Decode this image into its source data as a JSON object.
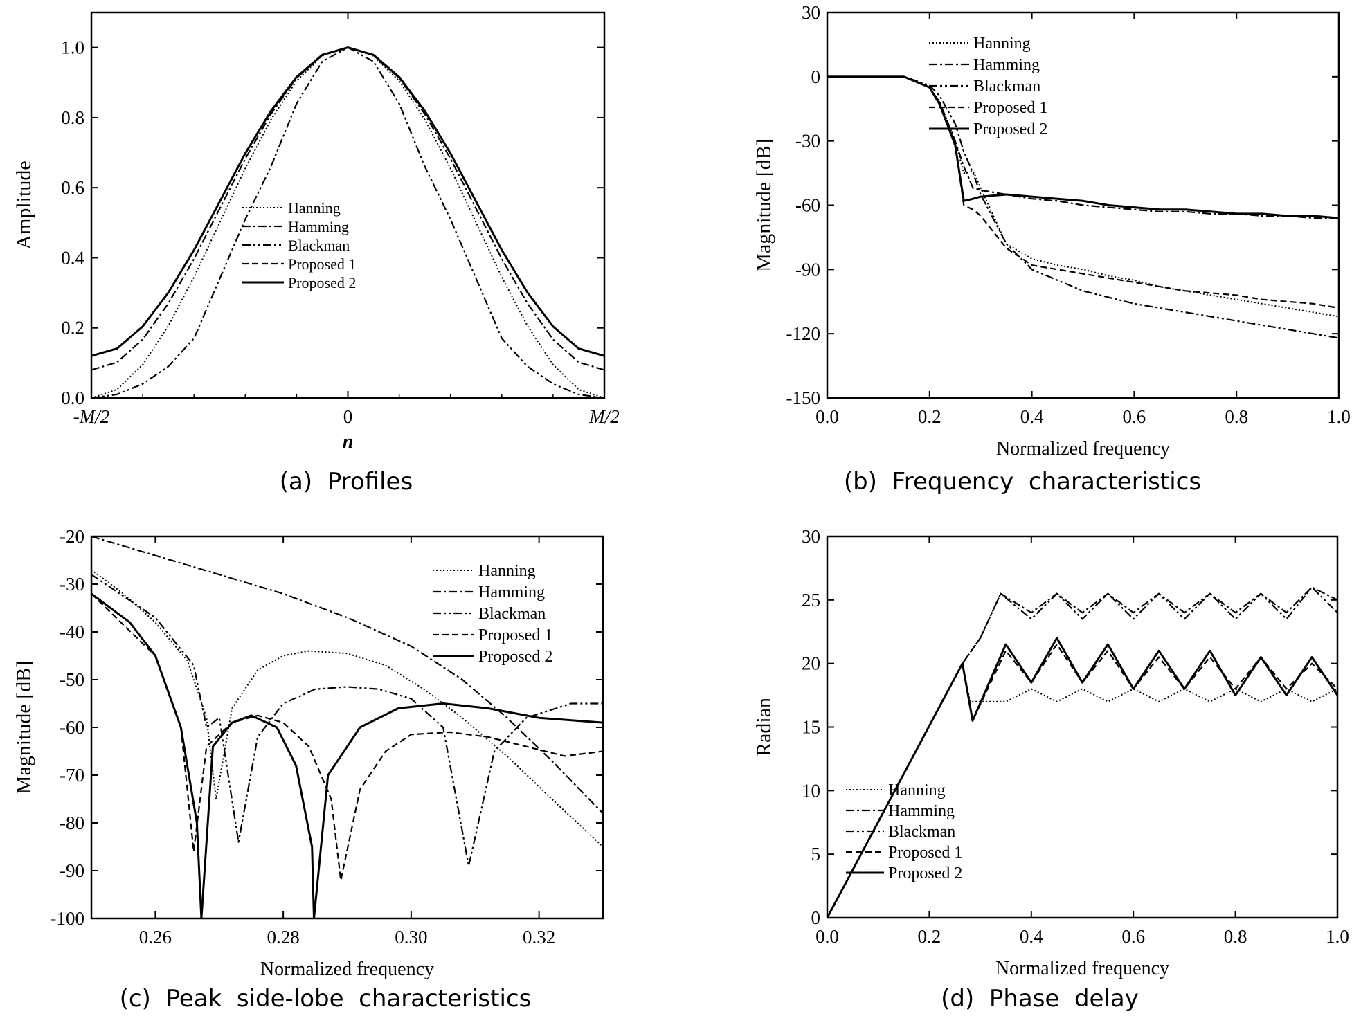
{
  "chart_data": [
    {
      "type": "line",
      "caption": "(a)  Profiles",
      "xlabel": "n",
      "ylabel": "Amplitude",
      "xlim": [
        -1,
        1
      ],
      "ylim": [
        0,
        1.1
      ],
      "yticks": [
        0.0,
        0.2,
        0.4,
        0.6,
        0.8,
        1.0
      ],
      "ytick_labels": [
        "0.0",
        "0.2",
        "0.4",
        "0.6",
        "0.8",
        "1.0"
      ],
      "xticks": [
        -1,
        0,
        1
      ],
      "xtick_labels": [
        "-M/2",
        "0",
        "M/2"
      ],
      "legend_position": "bottom-center",
      "x": [
        -1.0,
        -0.9,
        -0.8,
        -0.7,
        -0.6,
        -0.5,
        -0.4,
        -0.3,
        -0.2,
        -0.1,
        0.0,
        0.1,
        0.2,
        0.3,
        0.4,
        0.5,
        0.6,
        0.7,
        0.8,
        0.9,
        1.0
      ],
      "series": [
        {
          "name": "Hanning",
          "style": "dotted",
          "values": [
            0.0,
            0.024,
            0.095,
            0.206,
            0.345,
            0.5,
            0.655,
            0.794,
            0.905,
            0.976,
            1.0,
            0.976,
            0.905,
            0.794,
            0.655,
            0.5,
            0.345,
            0.206,
            0.095,
            0.024,
            0.0
          ]
        },
        {
          "name": "Hamming",
          "style": "dashdot",
          "values": [
            0.08,
            0.102,
            0.167,
            0.27,
            0.397,
            0.54,
            0.683,
            0.81,
            0.913,
            0.978,
            1.0,
            0.978,
            0.913,
            0.81,
            0.683,
            0.54,
            0.397,
            0.27,
            0.167,
            0.102,
            0.08
          ]
        },
        {
          "name": "Blackman",
          "style": "dashdotdot",
          "values": [
            0.0,
            0.01,
            0.04,
            0.09,
            0.17,
            0.34,
            0.51,
            0.66,
            0.84,
            0.96,
            1.0,
            0.96,
            0.84,
            0.66,
            0.51,
            0.34,
            0.17,
            0.09,
            0.04,
            0.01,
            0.0
          ]
        },
        {
          "name": "Proposed 1",
          "style": "dashed",
          "values": [
            0.12,
            0.141,
            0.204,
            0.301,
            0.422,
            0.56,
            0.698,
            0.819,
            0.916,
            0.979,
            1.0,
            0.979,
            0.916,
            0.819,
            0.698,
            0.56,
            0.422,
            0.301,
            0.204,
            0.141,
            0.12
          ]
        },
        {
          "name": "Proposed 2",
          "style": "solid",
          "values": [
            0.12,
            0.141,
            0.204,
            0.301,
            0.422,
            0.56,
            0.698,
            0.819,
            0.916,
            0.979,
            1.0,
            0.979,
            0.916,
            0.819,
            0.698,
            0.56,
            0.422,
            0.301,
            0.204,
            0.141,
            0.12
          ]
        }
      ]
    },
    {
      "type": "line",
      "caption": "(b)  Frequency  characteristics",
      "xlabel": "Normalized frequency",
      "ylabel": "Magnitude [dB]",
      "xlim": [
        0.0,
        1.0
      ],
      "ylim": [
        -150,
        30
      ],
      "xticks": [
        0.0,
        0.2,
        0.4,
        0.6,
        0.8,
        1.0
      ],
      "xtick_labels": [
        "0.0",
        "0.2",
        "0.4",
        "0.6",
        "0.8",
        "1.0"
      ],
      "yticks": [
        30,
        0,
        -30,
        -60,
        -90,
        -120,
        -150
      ],
      "ytick_labels": [
        "30",
        "0",
        "-30",
        "-60",
        "-90",
        "-120",
        "-150"
      ],
      "legend_position": "top-right",
      "x": [
        0.0,
        0.15,
        0.2,
        0.22,
        0.25,
        0.267,
        0.285,
        0.3,
        0.35,
        0.4,
        0.45,
        0.5,
        0.55,
        0.6,
        0.65,
        0.7,
        0.75,
        0.8,
        0.85,
        0.9,
        0.95,
        1.0
      ],
      "series": [
        {
          "name": "Hanning",
          "style": "dotted",
          "values": [
            0,
            0,
            -5,
            -12,
            -30,
            -45,
            -44,
            -52,
            -78,
            -85,
            -88,
            -90,
            -93,
            -95,
            -98,
            -100,
            -102,
            -104,
            -106,
            -108,
            -110,
            -112
          ]
        },
        {
          "name": "Hamming",
          "style": "dashdot",
          "values": [
            0,
            0,
            -5,
            -12,
            -30,
            -42,
            -52,
            -53,
            -55,
            -57,
            -58,
            -60,
            -61,
            -62,
            -63,
            -63,
            -64,
            -64,
            -65,
            -65,
            -66,
            -66
          ]
        },
        {
          "name": "Blackman",
          "style": "dashdotdot",
          "values": [
            0,
            0,
            -4,
            -9,
            -22,
            -35,
            -45,
            -55,
            -78,
            -90,
            -95,
            -100,
            -103,
            -106,
            -108,
            -110,
            -112,
            -114,
            -116,
            -118,
            -120,
            -122
          ]
        },
        {
          "name": "Proposed 1",
          "style": "dashed",
          "values": [
            0,
            0,
            -5,
            -13,
            -32,
            -60,
            -62,
            -65,
            -80,
            -88,
            -90,
            -92,
            -94,
            -96,
            -98,
            -100,
            -101,
            -102,
            -104,
            -105,
            -106,
            -108
          ]
        },
        {
          "name": "Proposed 2",
          "style": "solid",
          "values": [
            0,
            0,
            -5,
            -13,
            -32,
            -58,
            -57,
            -56,
            -55,
            -56,
            -57,
            -58,
            -60,
            -61,
            -62,
            -62,
            -63,
            -64,
            -64,
            -65,
            -65,
            -66
          ]
        }
      ]
    },
    {
      "type": "line",
      "caption": "(c)  Peak  side-lobe  characteristics",
      "xlabel": "Normalized frequency",
      "ylabel": "Magnitude [dB]",
      "xlim": [
        0.25,
        0.33
      ],
      "ylim": [
        -100,
        -20
      ],
      "xticks": [
        0.26,
        0.28,
        0.3,
        0.32
      ],
      "xtick_labels": [
        "0.26",
        "0.28",
        "0.30",
        "0.32"
      ],
      "yticks": [
        -20,
        -30,
        -40,
        -50,
        -60,
        -70,
        -80,
        -90,
        -100
      ],
      "ytick_labels": [
        "-20",
        "-30",
        "-40",
        "-50",
        "-60",
        "-70",
        "-80",
        "-90",
        "-100"
      ],
      "legend_position": "top-right",
      "series": [
        {
          "name": "Hanning",
          "style": "dotted",
          "x": [
            0.25,
            0.255,
            0.26,
            0.265,
            0.268,
            0.2695,
            0.272,
            0.276,
            0.28,
            0.284,
            0.29,
            0.296,
            0.302,
            0.308,
            0.315,
            0.322,
            0.33
          ],
          "values": [
            -27,
            -32,
            -38,
            -46,
            -58,
            -75,
            -56,
            -48,
            -45,
            -44,
            -44.5,
            -47,
            -52,
            -58,
            -66,
            -75,
            -85
          ]
        },
        {
          "name": "Hamming",
          "style": "dashdot",
          "x": [
            0.25,
            0.26,
            0.27,
            0.28,
            0.29,
            0.3,
            0.308,
            0.315,
            0.322,
            0.33
          ],
          "values": [
            -20,
            -24,
            -28,
            -32,
            -37,
            -43,
            -50,
            -58,
            -67,
            -78
          ]
        },
        {
          "name": "Blackman",
          "style": "dashdotdot",
          "x": [
            0.25,
            0.26,
            0.266,
            0.268,
            0.27,
            0.273,
            0.276,
            0.28,
            0.285,
            0.29,
            0.295,
            0.3,
            0.305,
            0.309,
            0.313,
            0.318,
            0.325,
            0.33
          ],
          "values": [
            -28,
            -37,
            -47,
            -60,
            -58,
            -84,
            -62,
            -55,
            -52,
            -51.5,
            -52,
            -54,
            -60,
            -89,
            -65,
            -58,
            -55,
            -55
          ]
        },
        {
          "name": "Proposed 1",
          "style": "dashed",
          "x": [
            0.25,
            0.26,
            0.264,
            0.266,
            0.268,
            0.272,
            0.276,
            0.28,
            0.284,
            0.2875,
            0.289,
            0.292,
            0.296,
            0.3,
            0.306,
            0.312,
            0.318,
            0.324,
            0.33
          ],
          "values": [
            -32,
            -45,
            -60,
            -86,
            -64,
            -59,
            -57.5,
            -59,
            -64,
            -75,
            -92,
            -73,
            -65,
            -61.5,
            -61,
            -62,
            -64,
            -66,
            -65
          ]
        },
        {
          "name": "Proposed 2",
          "style": "solid",
          "x": [
            0.25,
            0.256,
            0.26,
            0.264,
            0.2665,
            0.2672,
            0.269,
            0.272,
            0.275,
            0.279,
            0.282,
            0.2845,
            0.2848,
            0.287,
            0.292,
            0.298,
            0.305,
            0.312,
            0.32,
            0.33
          ],
          "values": [
            -32,
            -38,
            -45,
            -60,
            -80,
            -100,
            -64,
            -59,
            -57.5,
            -60,
            -68,
            -85,
            -100,
            -70,
            -60,
            -56,
            -55,
            -56,
            -58,
            -59
          ]
        }
      ]
    },
    {
      "type": "line",
      "caption": "(d)  Phase  delay",
      "xlabel": "Normalized frequency",
      "ylabel": "Radian",
      "xlim": [
        0.0,
        1.0
      ],
      "ylim": [
        0,
        30
      ],
      "xticks": [
        0.0,
        0.2,
        0.4,
        0.6,
        0.8,
        1.0
      ],
      "xtick_labels": [
        "0.0",
        "0.2",
        "0.4",
        "0.6",
        "0.8",
        "1.0"
      ],
      "yticks": [
        0,
        5,
        10,
        15,
        20,
        25,
        30
      ],
      "ytick_labels": [
        "0",
        "5",
        "10",
        "15",
        "20",
        "25",
        "30"
      ],
      "legend_position": "bottom-center",
      "series": [
        {
          "name": "Hanning",
          "style": "dotted",
          "x": [
            0.0,
            0.265,
            0.28,
            0.35,
            0.4,
            0.45,
            0.5,
            0.55,
            0.6,
            0.65,
            0.7,
            0.75,
            0.8,
            0.85,
            0.9,
            0.95,
            1.0
          ],
          "values": [
            0,
            20,
            17,
            17,
            18,
            17,
            18,
            17,
            18,
            17,
            18,
            17,
            18,
            17,
            18,
            17,
            18
          ]
        },
        {
          "name": "Hamming",
          "style": "dashdot",
          "x": [
            0.0,
            0.265,
            0.3,
            0.34,
            0.4,
            0.45,
            0.5,
            0.55,
            0.6,
            0.65,
            0.7,
            0.75,
            0.8,
            0.85,
            0.9,
            0.95,
            1.0
          ],
          "values": [
            0,
            20,
            22,
            25.5,
            24,
            25.5,
            24,
            25.5,
            24,
            25.5,
            24,
            25.5,
            24,
            25.5,
            24,
            26,
            25
          ]
        },
        {
          "name": "Blackman",
          "style": "dashdotdot",
          "x": [
            0.0,
            0.265,
            0.3,
            0.34,
            0.4,
            0.45,
            0.5,
            0.55,
            0.6,
            0.65,
            0.7,
            0.75,
            0.8,
            0.85,
            0.9,
            0.95,
            1.0
          ],
          "values": [
            0,
            20,
            22,
            25.5,
            23.5,
            25.5,
            23.5,
            25.5,
            23.5,
            25.5,
            23.5,
            25.5,
            23.5,
            25.5,
            23.5,
            26,
            24
          ]
        },
        {
          "name": "Proposed 1",
          "style": "dashed",
          "x": [
            0.0,
            0.265,
            0.285,
            0.35,
            0.4,
            0.45,
            0.5,
            0.55,
            0.6,
            0.65,
            0.7,
            0.75,
            0.8,
            0.85,
            0.9,
            0.95,
            1.0
          ],
          "values": [
            0,
            20,
            15.5,
            21,
            18.5,
            21.5,
            18.5,
            21,
            18,
            20.5,
            18,
            20.5,
            18,
            20.5,
            18,
            20,
            18
          ]
        },
        {
          "name": "Proposed 2",
          "style": "solid",
          "x": [
            0.0,
            0.265,
            0.285,
            0.35,
            0.4,
            0.45,
            0.5,
            0.55,
            0.6,
            0.65,
            0.7,
            0.75,
            0.8,
            0.85,
            0.9,
            0.95,
            1.0
          ],
          "values": [
            0,
            20,
            15.5,
            21.5,
            18.5,
            22,
            18.5,
            21.5,
            18,
            21,
            18,
            21,
            17.5,
            20.5,
            17.5,
            20.5,
            17.5
          ]
        }
      ]
    }
  ]
}
